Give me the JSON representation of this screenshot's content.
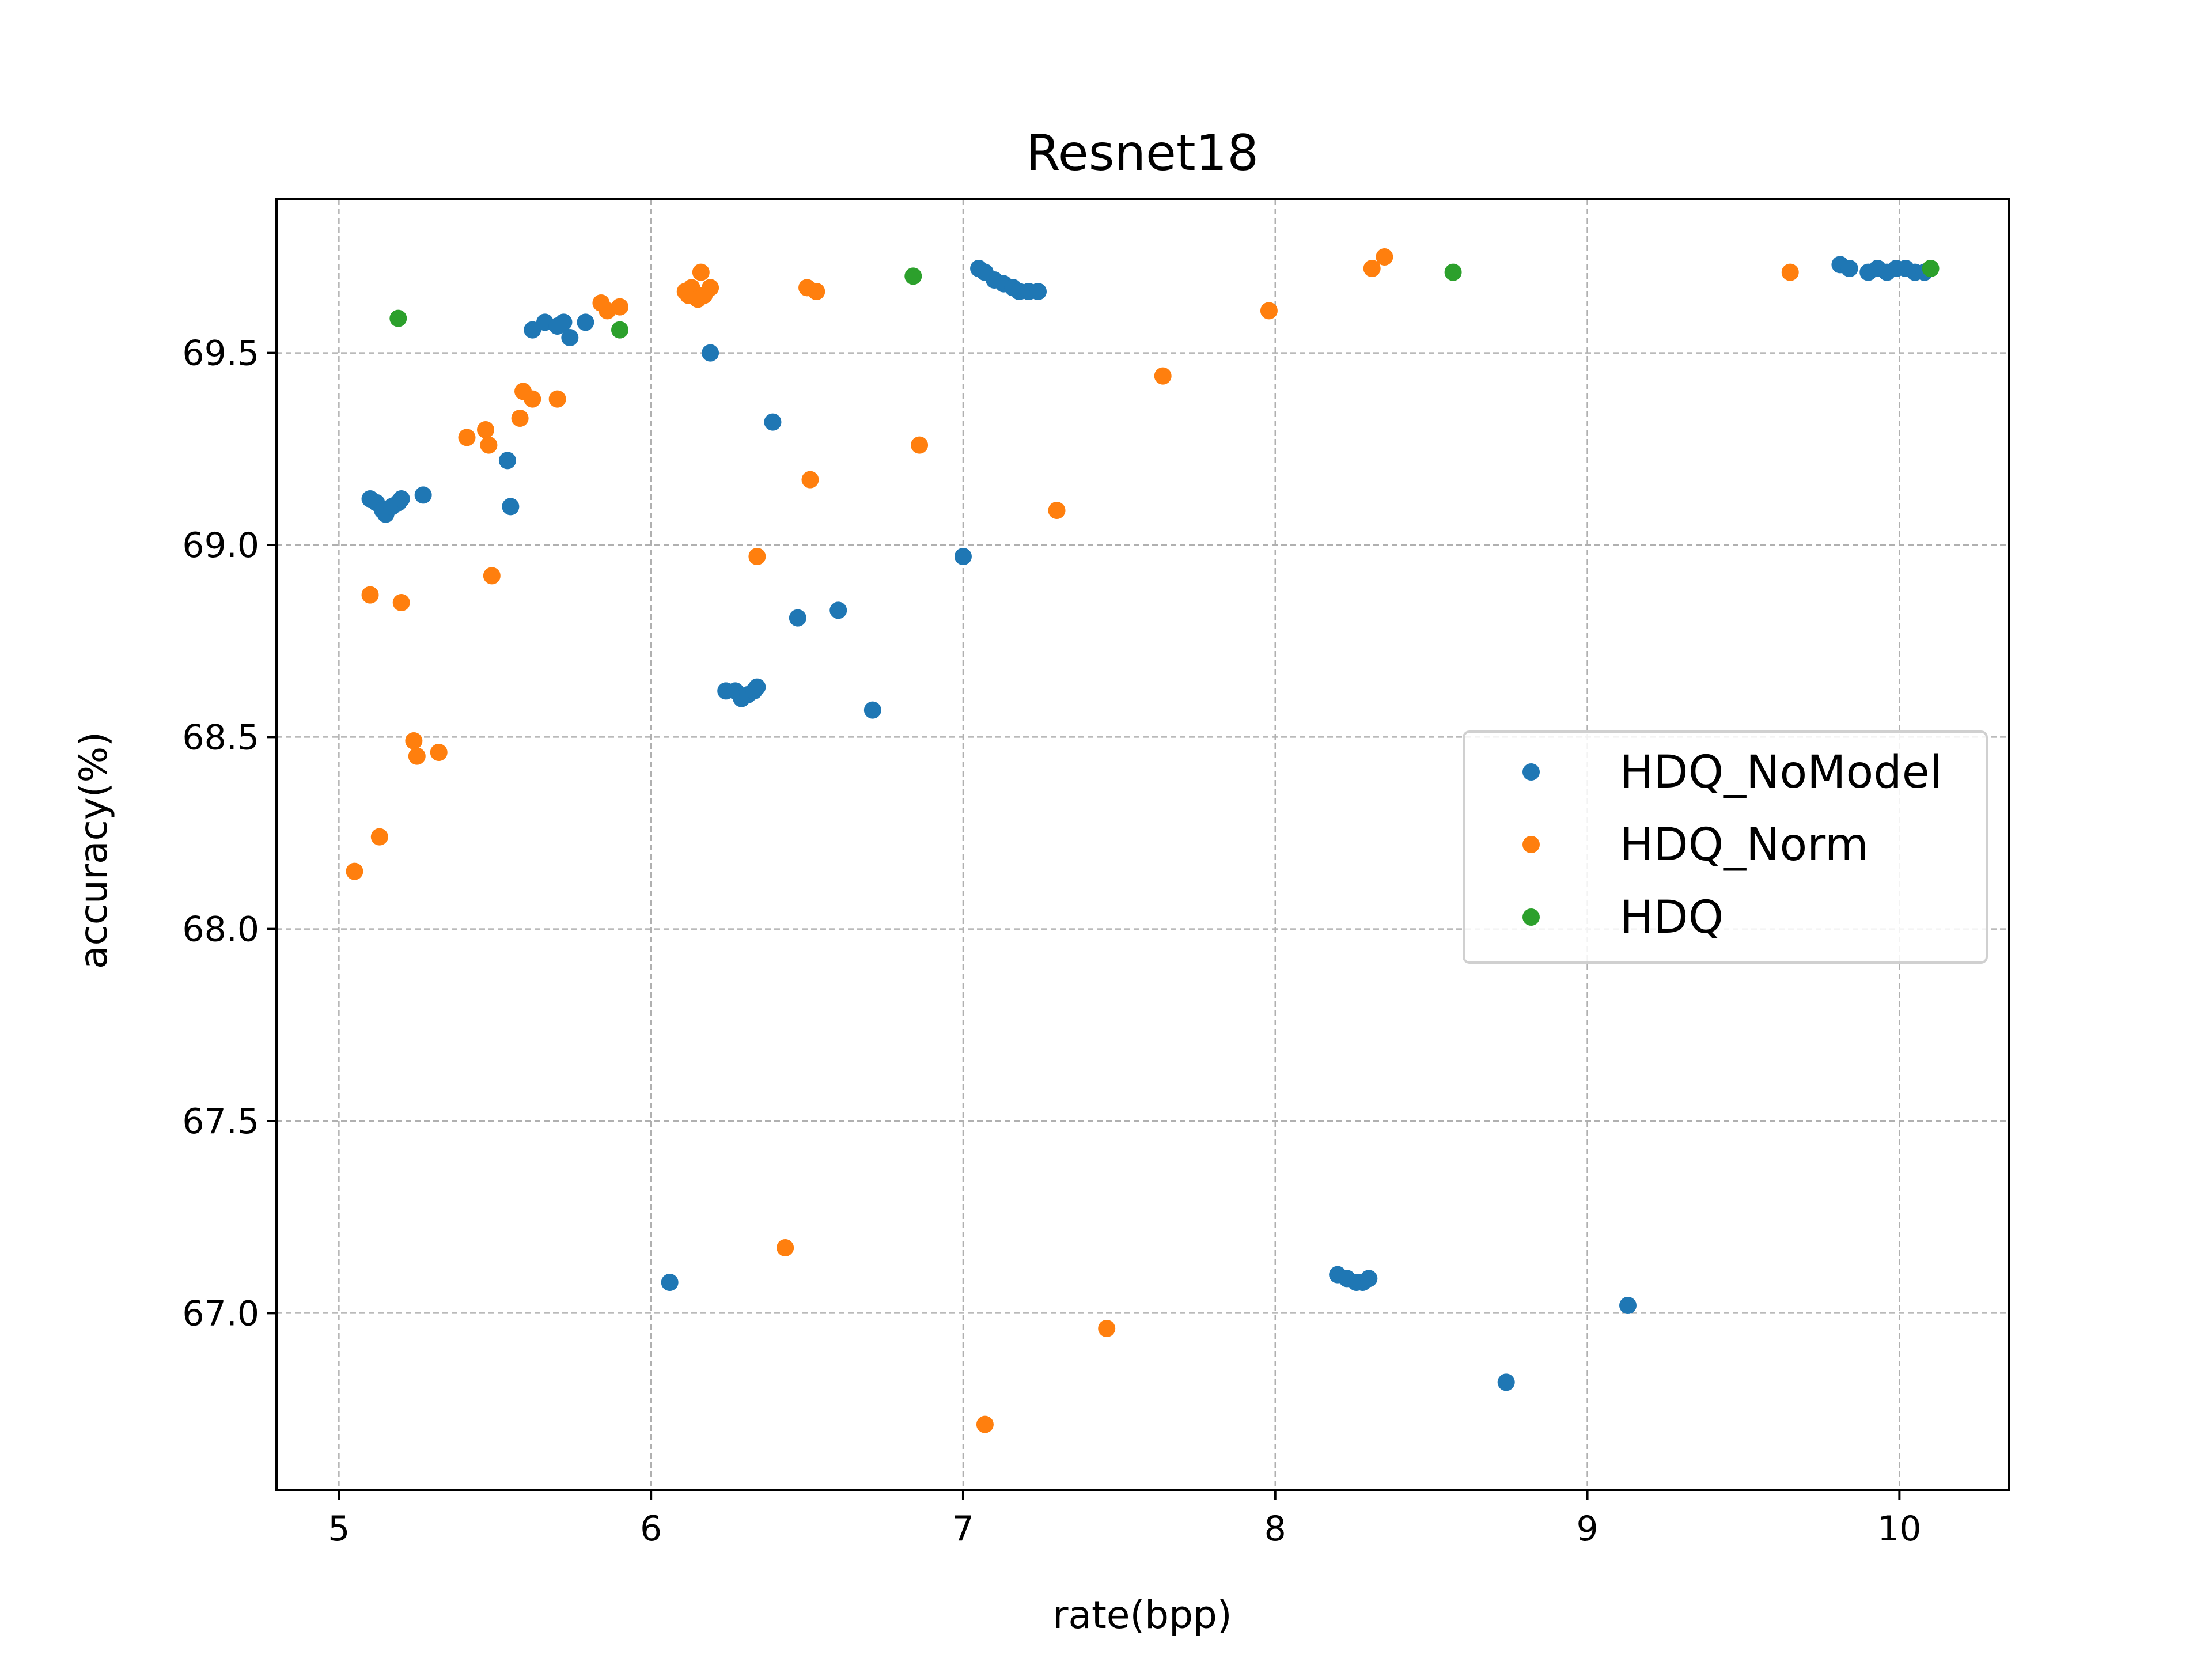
{
  "chart_data": {
    "type": "scatter",
    "title": "Resnet18",
    "xlabel": "rate(bpp)",
    "ylabel": "accuracy(%)",
    "xlim": [
      4.8,
      10.35
    ],
    "ylim": [
      66.54,
      69.9
    ],
    "xticks": [
      5,
      6,
      7,
      8,
      9,
      10
    ],
    "yticks": [
      67.0,
      67.5,
      68.0,
      68.5,
      69.0,
      69.5
    ],
    "xtick_labels": [
      "5",
      "6",
      "7",
      "8",
      "9",
      "10"
    ],
    "ytick_labels": [
      "67.0",
      "67.5",
      "68.0",
      "68.5",
      "69.0",
      "69.5"
    ],
    "grid": true,
    "legend_position": "center-right",
    "series": [
      {
        "name": "HDQ_NoModel",
        "color": "#1f77b4",
        "points": [
          [
            5.1,
            69.12
          ],
          [
            5.12,
            69.11
          ],
          [
            5.14,
            69.09
          ],
          [
            5.15,
            69.08
          ],
          [
            5.17,
            69.1
          ],
          [
            5.19,
            69.11
          ],
          [
            5.2,
            69.12
          ],
          [
            5.27,
            69.13
          ],
          [
            5.54,
            69.22
          ],
          [
            5.55,
            69.1
          ],
          [
            5.62,
            69.56
          ],
          [
            5.66,
            69.58
          ],
          [
            5.7,
            69.57
          ],
          [
            5.72,
            69.58
          ],
          [
            5.74,
            69.54
          ],
          [
            5.79,
            69.58
          ],
          [
            6.06,
            67.08
          ],
          [
            6.19,
            69.5
          ],
          [
            6.24,
            68.62
          ],
          [
            6.27,
            68.62
          ],
          [
            6.29,
            68.6
          ],
          [
            6.31,
            68.61
          ],
          [
            6.33,
            68.62
          ],
          [
            6.34,
            68.63
          ],
          [
            6.39,
            69.32
          ],
          [
            6.47,
            68.81
          ],
          [
            6.6,
            68.83
          ],
          [
            6.71,
            68.57
          ],
          [
            7.0,
            68.97
          ],
          [
            7.05,
            69.72
          ],
          [
            7.07,
            69.71
          ],
          [
            7.1,
            69.69
          ],
          [
            7.13,
            69.68
          ],
          [
            7.16,
            69.67
          ],
          [
            7.18,
            69.66
          ],
          [
            7.21,
            69.66
          ],
          [
            7.24,
            69.66
          ],
          [
            8.2,
            67.1
          ],
          [
            8.23,
            67.09
          ],
          [
            8.26,
            67.08
          ],
          [
            8.28,
            67.08
          ],
          [
            8.3,
            67.09
          ],
          [
            8.74,
            66.82
          ],
          [
            9.13,
            67.02
          ],
          [
            9.81,
            69.73
          ],
          [
            9.84,
            69.72
          ],
          [
            9.9,
            69.71
          ],
          [
            9.93,
            69.72
          ],
          [
            9.96,
            69.71
          ],
          [
            9.99,
            69.72
          ],
          [
            10.02,
            69.72
          ],
          [
            10.05,
            69.71
          ],
          [
            10.08,
            69.71
          ]
        ]
      },
      {
        "name": "HDQ_Norm",
        "color": "#ff7f0e",
        "points": [
          [
            5.05,
            68.15
          ],
          [
            5.1,
            68.87
          ],
          [
            5.13,
            68.24
          ],
          [
            5.2,
            68.85
          ],
          [
            5.24,
            68.49
          ],
          [
            5.25,
            68.45
          ],
          [
            5.32,
            68.46
          ],
          [
            5.41,
            69.28
          ],
          [
            5.47,
            69.3
          ],
          [
            5.48,
            69.26
          ],
          [
            5.49,
            68.92
          ],
          [
            5.58,
            69.33
          ],
          [
            5.59,
            69.4
          ],
          [
            5.62,
            69.38
          ],
          [
            5.7,
            69.38
          ],
          [
            5.84,
            69.63
          ],
          [
            5.86,
            69.61
          ],
          [
            5.9,
            69.62
          ],
          [
            6.11,
            69.66
          ],
          [
            6.12,
            69.65
          ],
          [
            6.13,
            69.67
          ],
          [
            6.15,
            69.64
          ],
          [
            6.16,
            69.71
          ],
          [
            6.17,
            69.65
          ],
          [
            6.19,
            69.67
          ],
          [
            6.34,
            68.97
          ],
          [
            6.43,
            67.17
          ],
          [
            6.5,
            69.67
          ],
          [
            6.51,
            69.17
          ],
          [
            6.53,
            69.66
          ],
          [
            6.86,
            69.26
          ],
          [
            7.07,
            66.71
          ],
          [
            7.3,
            69.09
          ],
          [
            7.46,
            66.96
          ],
          [
            7.64,
            69.44
          ],
          [
            7.98,
            69.61
          ],
          [
            8.31,
            69.72
          ],
          [
            8.35,
            69.75
          ],
          [
            9.65,
            69.71
          ]
        ]
      },
      {
        "name": "HDQ",
        "color": "#2ca02c",
        "points": [
          [
            5.19,
            69.59
          ],
          [
            5.9,
            69.56
          ],
          [
            6.84,
            69.7
          ],
          [
            8.57,
            69.71
          ],
          [
            10.1,
            69.72
          ]
        ]
      }
    ]
  }
}
